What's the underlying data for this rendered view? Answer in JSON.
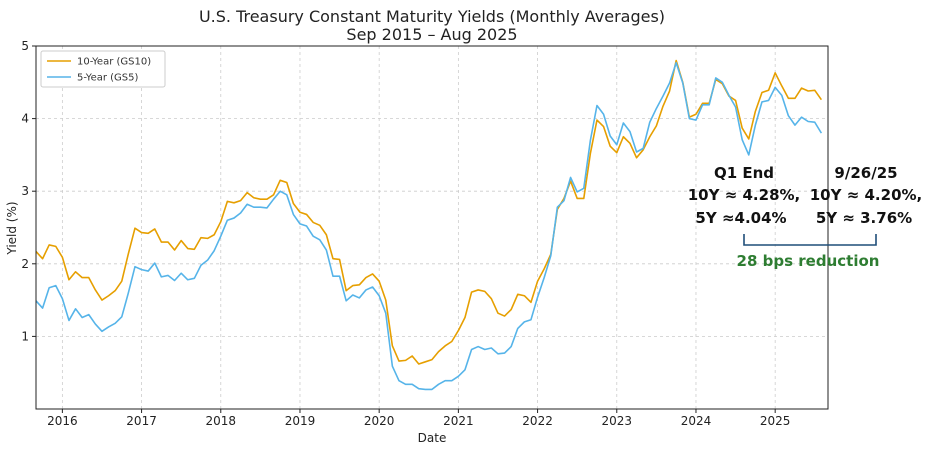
{
  "chart_data": {
    "type": "line",
    "title": "U.S. Treasury Constant Maturity Yields (Monthly Averages)",
    "subtitle": "Sep 2015 – Aug 2025",
    "xlabel": "Date",
    "ylabel": "Yield (%)",
    "ylim": [
      0,
      5
    ],
    "xlim": [
      2015.667,
      2025.667
    ],
    "grid": true,
    "legend_position": "top-left",
    "xticks": [
      2016,
      2017,
      2018,
      2019,
      2020,
      2021,
      2022,
      2023,
      2024,
      2025
    ],
    "yticks": [
      1,
      2,
      3,
      4,
      5
    ],
    "series": [
      {
        "name": "10-Year (GS10)",
        "color": "#E69F00",
        "start": "2015-09",
        "values": [
          2.17,
          2.07,
          2.26,
          2.24,
          2.09,
          1.78,
          1.89,
          1.81,
          1.81,
          1.64,
          1.5,
          1.56,
          1.63,
          1.76,
          2.14,
          2.49,
          2.43,
          2.42,
          2.48,
          2.3,
          2.3,
          2.19,
          2.32,
          2.21,
          2.2,
          2.36,
          2.35,
          2.4,
          2.58,
          2.86,
          2.84,
          2.87,
          2.98,
          2.91,
          2.89,
          2.89,
          2.95,
          3.15,
          3.12,
          2.83,
          2.71,
          2.68,
          2.57,
          2.53,
          2.4,
          2.07,
          2.06,
          1.63,
          1.7,
          1.71,
          1.81,
          1.86,
          1.76,
          1.5,
          0.87,
          0.66,
          0.67,
          0.73,
          0.62,
          0.65,
          0.68,
          0.79,
          0.87,
          0.93,
          1.08,
          1.26,
          1.61,
          1.64,
          1.62,
          1.52,
          1.32,
          1.28,
          1.37,
          1.58,
          1.56,
          1.47,
          1.76,
          1.93,
          2.13,
          2.75,
          2.9,
          3.14,
          2.9,
          2.9,
          3.52,
          3.98,
          3.89,
          3.62,
          3.53,
          3.75,
          3.66,
          3.46,
          3.57,
          3.75,
          3.9,
          4.17,
          4.38,
          4.8,
          4.5,
          4.02,
          4.06,
          4.21,
          4.21,
          4.54,
          4.48,
          4.31,
          4.25,
          3.87,
          3.72,
          4.1,
          4.36,
          4.39,
          4.63,
          4.45,
          4.28,
          4.28,
          4.42,
          4.38,
          4.39,
          4.26
        ]
      },
      {
        "name": "5-Year (GS5)",
        "color": "#56B4E9",
        "start": "2015-09",
        "values": [
          1.49,
          1.39,
          1.67,
          1.7,
          1.52,
          1.22,
          1.38,
          1.26,
          1.3,
          1.17,
          1.07,
          1.13,
          1.18,
          1.27,
          1.6,
          1.96,
          1.92,
          1.9,
          2.01,
          1.82,
          1.84,
          1.77,
          1.87,
          1.78,
          1.8,
          1.98,
          2.05,
          2.18,
          2.38,
          2.6,
          2.63,
          2.7,
          2.82,
          2.78,
          2.78,
          2.77,
          2.89,
          3.0,
          2.95,
          2.68,
          2.55,
          2.52,
          2.38,
          2.33,
          2.19,
          1.83,
          1.83,
          1.49,
          1.57,
          1.53,
          1.64,
          1.68,
          1.56,
          1.32,
          0.59,
          0.39,
          0.34,
          0.34,
          0.28,
          0.27,
          0.27,
          0.34,
          0.39,
          0.39,
          0.45,
          0.54,
          0.82,
          0.86,
          0.82,
          0.84,
          0.76,
          0.77,
          0.86,
          1.11,
          1.2,
          1.23,
          1.54,
          1.81,
          2.11,
          2.78,
          2.87,
          3.19,
          2.99,
          3.04,
          3.7,
          4.18,
          4.06,
          3.76,
          3.64,
          3.94,
          3.82,
          3.54,
          3.59,
          3.95,
          4.14,
          4.31,
          4.49,
          4.77,
          4.49,
          4.0,
          3.98,
          4.19,
          4.19,
          4.56,
          4.5,
          4.32,
          4.16,
          3.71,
          3.5,
          3.91,
          4.23,
          4.25,
          4.43,
          4.32,
          4.04,
          3.91,
          4.02,
          3.96,
          3.95,
          3.8
        ]
      }
    ],
    "annotations": {
      "q1_label": "Q1 End",
      "q1_10y": "10Y ≈ 4.28%,",
      "q1_5y": "5Y ≈4.04%",
      "current_label": "9/26/25",
      "current_10y": "10Y ≈ 4.20%,",
      "current_5y": "5Y ≈ 3.76%",
      "reduction": "28 bps reduction",
      "bracket_color": "#1f4e79",
      "reduction_color": "#2e7d32"
    }
  }
}
